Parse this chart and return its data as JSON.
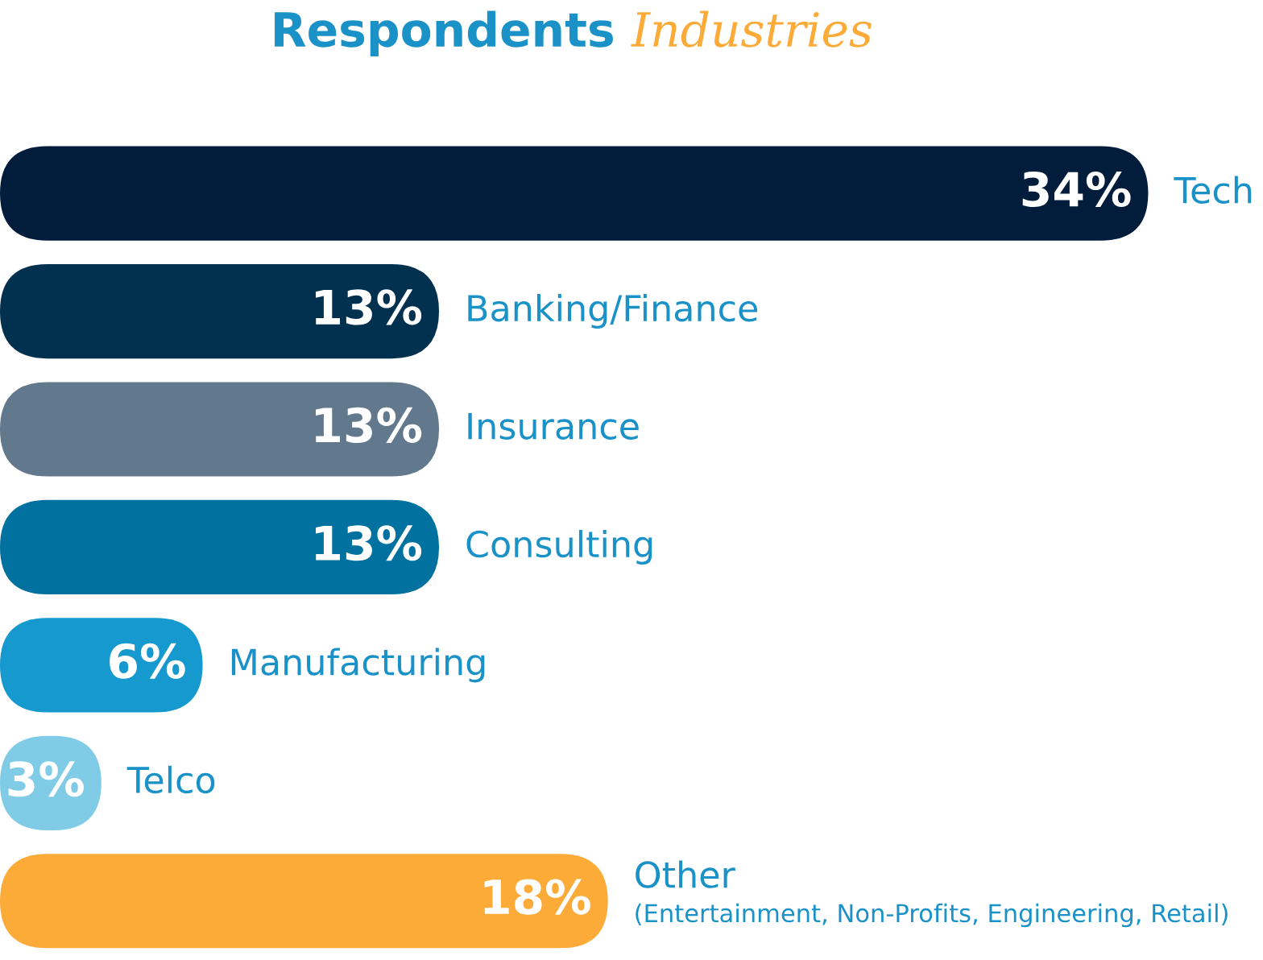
{
  "chart_data": {
    "type": "bar",
    "orientation": "horizontal",
    "title": "Respondents Industries",
    "categories": [
      "Tech",
      "Banking/Finance",
      "Insurance",
      "Consulting",
      "Manufacturing",
      "Telco",
      "Other\n(Entertainment, Non-Profits, Engineering, Retail)"
    ],
    "values": [
      34,
      13,
      13,
      13,
      6,
      3,
      18
    ],
    "colors": [
      "#021d3b",
      "#02304f",
      "#62788c",
      "#01719f",
      "#1699cf",
      "#80cbe6",
      "#fcab38"
    ],
    "value_labels": [
      "34%",
      "13%",
      "13%",
      "13%",
      "6%",
      "3%",
      "18%"
    ]
  }
}
